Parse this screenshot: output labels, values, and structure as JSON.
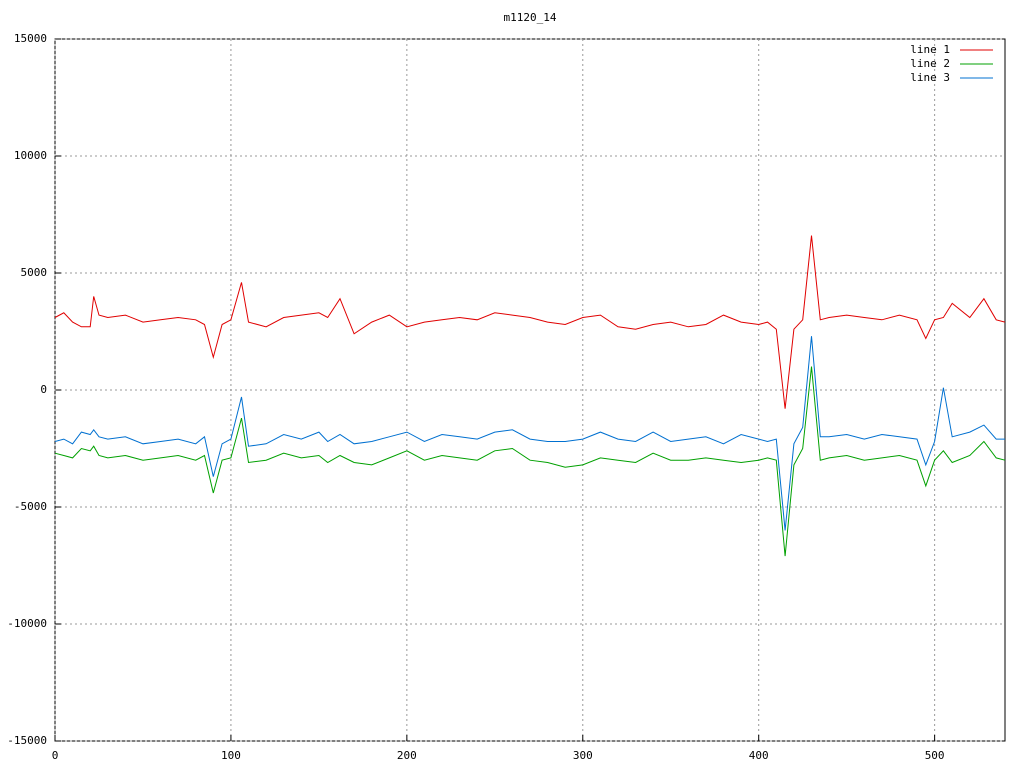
{
  "chart_data": {
    "type": "line",
    "title": "m1120_14",
    "x": [
      0,
      5,
      10,
      15,
      20,
      22,
      25,
      30,
      40,
      50,
      60,
      70,
      80,
      85,
      90,
      95,
      100,
      106,
      110,
      120,
      130,
      140,
      150,
      155,
      162,
      170,
      180,
      190,
      200,
      210,
      220,
      230,
      240,
      250,
      260,
      270,
      280,
      290,
      300,
      310,
      320,
      330,
      340,
      350,
      360,
      370,
      380,
      390,
      400,
      405,
      410,
      415,
      420,
      425,
      430,
      435,
      440,
      450,
      460,
      470,
      480,
      490,
      495,
      500,
      505,
      510,
      520,
      528,
      535,
      540
    ],
    "series": [
      {
        "name": "line 1",
        "color": "#e00000",
        "values": [
          3100,
          3300,
          2900,
          2700,
          2700,
          4000,
          3200,
          3100,
          3200,
          2900,
          3000,
          3100,
          3000,
          2800,
          1400,
          2800,
          3000,
          4600,
          2900,
          2700,
          3100,
          3200,
          3300,
          3100,
          3900,
          2400,
          2900,
          3200,
          2700,
          2900,
          3000,
          3100,
          3000,
          3300,
          3200,
          3100,
          2900,
          2800,
          3100,
          3200,
          2700,
          2600,
          2800,
          2900,
          2700,
          2800,
          3200,
          2900,
          2800,
          2900,
          2600,
          -800,
          2600,
          3000,
          6600,
          3000,
          3100,
          3200,
          3100,
          3000,
          3200,
          3000,
          2200,
          3000,
          3100,
          3700,
          3100,
          3900,
          3000,
          2900
        ]
      },
      {
        "name": "line 2",
        "color": "#00a000",
        "values": [
          -2700,
          -2800,
          -2900,
          -2500,
          -2600,
          -2400,
          -2800,
          -2900,
          -2800,
          -3000,
          -2900,
          -2800,
          -3000,
          -2800,
          -4400,
          -3000,
          -2900,
          -1200,
          -3100,
          -3000,
          -2700,
          -2900,
          -2800,
          -3100,
          -2800,
          -3100,
          -3200,
          -2900,
          -2600,
          -3000,
          -2800,
          -2900,
          -3000,
          -2600,
          -2500,
          -3000,
          -3100,
          -3300,
          -3200,
          -2900,
          -3000,
          -3100,
          -2700,
          -3000,
          -3000,
          -2900,
          -3000,
          -3100,
          -3000,
          -2900,
          -3000,
          -7100,
          -3200,
          -2500,
          1000,
          -3000,
          -2900,
          -2800,
          -3000,
          -2900,
          -2800,
          -3000,
          -4100,
          -3000,
          -2600,
          -3100,
          -2800,
          -2200,
          -2900,
          -3000
        ]
      },
      {
        "name": "line 3",
        "color": "#0070d0",
        "values": [
          -2200,
          -2100,
          -2300,
          -1800,
          -1900,
          -1700,
          -2000,
          -2100,
          -2000,
          -2300,
          -2200,
          -2100,
          -2300,
          -2000,
          -3700,
          -2300,
          -2100,
          -300,
          -2400,
          -2300,
          -1900,
          -2100,
          -1800,
          -2200,
          -1900,
          -2300,
          -2200,
          -2000,
          -1800,
          -2200,
          -1900,
          -2000,
          -2100,
          -1800,
          -1700,
          -2100,
          -2200,
          -2200,
          -2100,
          -1800,
          -2100,
          -2200,
          -1800,
          -2200,
          -2100,
          -2000,
          -2300,
          -1900,
          -2100,
          -2200,
          -2100,
          -6000,
          -2300,
          -1600,
          2300,
          -2000,
          -2000,
          -1900,
          -2100,
          -1900,
          -2000,
          -2100,
          -3200,
          -2200,
          100,
          -2000,
          -1800,
          -1500,
          -2100,
          -2100
        ]
      }
    ],
    "xlim": [
      0,
      540
    ],
    "xticks": [
      0,
      100,
      200,
      300,
      400,
      500
    ],
    "ylim": [
      -15000,
      15000
    ],
    "yticks": [
      -15000,
      -10000,
      -5000,
      0,
      5000,
      10000,
      15000
    ],
    "grid": true,
    "legend": "top-right"
  }
}
